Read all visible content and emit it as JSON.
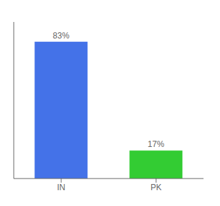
{
  "chart_data": {
    "type": "bar",
    "categories": [
      "IN",
      "PK"
    ],
    "values": [
      83,
      17
    ],
    "value_labels": [
      "83%",
      "17%"
    ],
    "colors": [
      "#4472e8",
      "#33cc33"
    ],
    "ylim": [
      0,
      95
    ],
    "tick_labels": "x",
    "data_labels": true,
    "grid": false
  }
}
